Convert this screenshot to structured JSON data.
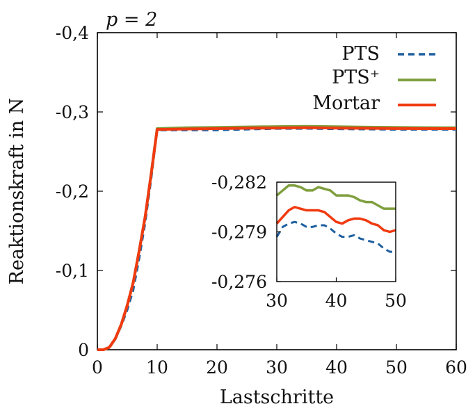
{
  "chart_data": [
    {
      "type": "line",
      "title": "p = 2",
      "xlabel": "Lastschritte",
      "ylabel": "Reaktionskraft in N",
      "xlim": [
        0,
        60
      ],
      "ylim": [
        0,
        -0.4
      ],
      "x_ticks": [
        0,
        10,
        20,
        30,
        40,
        50,
        60
      ],
      "x_tick_labels": [
        "0",
        "10",
        "20",
        "30",
        "40",
        "50",
        "60"
      ],
      "y_ticks": [
        0,
        -0.1,
        -0.2,
        -0.3,
        -0.4
      ],
      "y_tick_labels": [
        "0",
        "-0,1",
        "-0,2",
        "-0,3",
        "-0,4"
      ],
      "grid": false,
      "legend_position": "top-right",
      "series": [
        {
          "name": "PTS",
          "color": "#1f5f9f",
          "style": "dashed",
          "x": [
            0,
            1,
            2,
            3,
            4,
            5,
            6,
            7,
            8,
            9,
            10,
            15,
            20,
            25,
            30,
            35,
            40,
            45,
            50,
            55,
            60
          ],
          "y": [
            0,
            0,
            -0.003,
            -0.013,
            -0.03,
            -0.05,
            -0.075,
            -0.115,
            -0.16,
            -0.215,
            -0.277,
            -0.277,
            -0.277,
            -0.278,
            -0.2788,
            -0.2789,
            -0.2784,
            -0.2781,
            -0.2777,
            -0.2777,
            -0.2778
          ]
        },
        {
          "name": "PTS⁺",
          "color": "#7f9f3f",
          "style": "solid",
          "x": [
            0,
            1,
            2,
            3,
            4,
            5,
            6,
            7,
            8,
            9,
            10,
            15,
            20,
            25,
            30,
            35,
            40,
            45,
            50,
            55,
            60
          ],
          "y": [
            0,
            0,
            -0.003,
            -0.014,
            -0.032,
            -0.056,
            -0.085,
            -0.125,
            -0.168,
            -0.222,
            -0.279,
            -0.28,
            -0.2805,
            -0.281,
            -0.2815,
            -0.2818,
            -0.2814,
            -0.2808,
            -0.2805,
            -0.2802,
            -0.28
          ]
        },
        {
          "name": "Mortar",
          "color": "#f03a10",
          "style": "solid",
          "x": [
            0,
            1,
            2,
            3,
            4,
            5,
            6,
            7,
            8,
            9,
            10,
            15,
            20,
            25,
            30,
            35,
            40,
            45,
            50,
            55,
            60
          ],
          "y": [
            0,
            0,
            -0.003,
            -0.014,
            -0.032,
            -0.056,
            -0.085,
            -0.125,
            -0.168,
            -0.222,
            -0.278,
            -0.2785,
            -0.279,
            -0.2795,
            -0.2797,
            -0.2802,
            -0.2796,
            -0.2794,
            -0.2791,
            -0.279,
            -0.2789
          ]
        }
      ]
    },
    {
      "type": "line",
      "title": "",
      "xlabel": "",
      "ylabel": "",
      "xlim": [
        30,
        50
      ],
      "ylim": [
        -0.276,
        -0.282
      ],
      "x_ticks": [
        30,
        40,
        50
      ],
      "x_tick_labels": [
        "30",
        "40",
        "50"
      ],
      "y_ticks": [
        -0.282,
        -0.279,
        -0.276
      ],
      "y_tick_labels": [
        "-0,282",
        "-0,279",
        "-0,276"
      ],
      "grid": false,
      "series": [
        {
          "name": "PTS",
          "color": "#1f5f9f",
          "style": "dashed",
          "x": [
            30,
            31,
            32,
            33,
            34,
            35,
            36,
            37,
            38,
            39,
            40,
            41,
            42,
            43,
            44,
            45,
            46,
            47,
            48,
            49,
            50
          ],
          "y": [
            -0.2787,
            -0.2793,
            -0.2795,
            -0.2796,
            -0.2795,
            -0.2793,
            -0.2793,
            -0.2794,
            -0.2794,
            -0.2792,
            -0.2789,
            -0.2787,
            -0.2787,
            -0.2788,
            -0.2786,
            -0.2785,
            -0.2784,
            -0.2783,
            -0.278,
            -0.2778,
            -0.2778
          ]
        },
        {
          "name": "PTS⁺",
          "color": "#7f9f3f",
          "style": "solid",
          "x": [
            30,
            31,
            32,
            33,
            34,
            35,
            36,
            37,
            38,
            39,
            40,
            41,
            42,
            43,
            44,
            45,
            46,
            47,
            48,
            49,
            50
          ],
          "y": [
            -0.2812,
            -0.2815,
            -0.2818,
            -0.2818,
            -0.2817,
            -0.2815,
            -0.2815,
            -0.2817,
            -0.2816,
            -0.2815,
            -0.2812,
            -0.2812,
            -0.2812,
            -0.2811,
            -0.2809,
            -0.2808,
            -0.2808,
            -0.2806,
            -0.2804,
            -0.2804,
            -0.2804
          ]
        },
        {
          "name": "Mortar",
          "color": "#f03a10",
          "style": "solid",
          "x": [
            30,
            31,
            32,
            33,
            34,
            35,
            36,
            37,
            38,
            39,
            40,
            41,
            42,
            43,
            44,
            45,
            46,
            47,
            48,
            49,
            50
          ],
          "y": [
            -0.2795,
            -0.2799,
            -0.2803,
            -0.2805,
            -0.2804,
            -0.2803,
            -0.2803,
            -0.2803,
            -0.2802,
            -0.2799,
            -0.2796,
            -0.2795,
            -0.2797,
            -0.2798,
            -0.2798,
            -0.2797,
            -0.2795,
            -0.2794,
            -0.2791,
            -0.279,
            -0.2791
          ]
        }
      ]
    }
  ]
}
